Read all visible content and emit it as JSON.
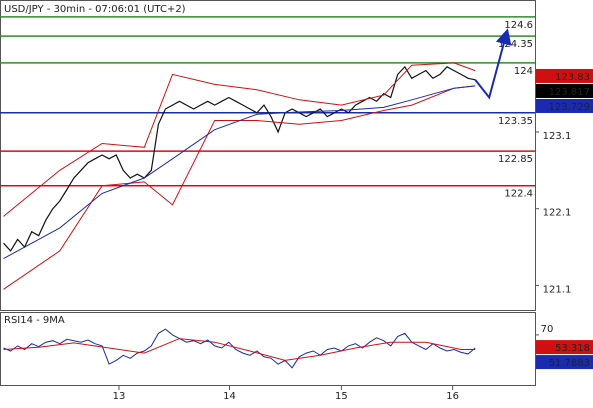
{
  "chart_data": {
    "type": "line",
    "title": "USD/JPY - 30min - 07:06:01 (UTC+2)",
    "xlim": [
      -0.5,
      75.5
    ],
    "xticks": [
      {
        "value": 16.4,
        "label": "13"
      },
      {
        "value": 32.1,
        "label": "14"
      },
      {
        "value": 48,
        "label": "15"
      },
      {
        "value": 63.8,
        "label": "16"
      }
    ],
    "ylim": [
      120.78,
      124.82
    ],
    "yticks": [
      121.1,
      122.1,
      123.1
    ],
    "levels": [
      {
        "value": 124.6,
        "color": "#2e8b2e"
      },
      {
        "value": 124.35,
        "color": "#2e8b2e"
      },
      {
        "value": 124,
        "color": "#2e8b2e"
      },
      {
        "value": 123.35,
        "color": "#1a2bb0"
      },
      {
        "value": 122.85,
        "color": "#d01010"
      },
      {
        "value": 122.4,
        "color": "#d01010"
      }
    ],
    "series": [
      {
        "color": "#111111",
        "x": [
          0,
          1,
          2,
          3,
          4,
          5,
          6,
          7,
          8,
          9,
          10,
          11,
          12,
          13,
          14,
          15,
          16,
          17,
          18,
          19,
          20,
          21,
          22,
          23,
          24,
          25,
          26,
          27,
          28,
          29,
          30,
          31,
          32,
          33,
          34,
          35,
          36,
          37,
          38,
          39,
          40,
          41,
          42,
          43,
          44,
          45,
          46,
          47,
          48,
          49,
          50,
          51,
          52,
          53,
          54,
          55,
          56,
          57,
          58,
          59,
          60,
          61,
          62,
          63,
          64,
          65,
          66,
          67
        ],
        "values": [
          121.65,
          121.55,
          121.7,
          121.6,
          121.8,
          121.75,
          121.95,
          122.1,
          122.2,
          122.35,
          122.5,
          122.6,
          122.7,
          122.75,
          122.8,
          122.75,
          122.8,
          122.6,
          122.5,
          122.55,
          122.5,
          122.6,
          123.2,
          123.4,
          123.45,
          123.5,
          123.45,
          123.4,
          123.45,
          123.5,
          123.45,
          123.5,
          123.55,
          123.5,
          123.45,
          123.4,
          123.35,
          123.45,
          123.3,
          123.1,
          123.35,
          123.4,
          123.35,
          123.3,
          123.35,
          123.4,
          123.3,
          123.35,
          123.4,
          123.35,
          123.45,
          123.5,
          123.55,
          123.5,
          123.6,
          123.55,
          123.85,
          123.95,
          123.8,
          123.85,
          123.9,
          123.8,
          123.85,
          123.95,
          123.9,
          123.85,
          123.8,
          123.78
        ]
      },
      {
        "color": "#d01010",
        "x": [
          0,
          8,
          14,
          20,
          24,
          30,
          36,
          42,
          48,
          54,
          58,
          64,
          67
        ],
        "values": [
          122.0,
          122.6,
          122.95,
          122.9,
          123.85,
          123.72,
          123.65,
          123.52,
          123.45,
          123.58,
          123.97,
          124.0,
          123.9
        ]
      },
      {
        "color": "#d01010",
        "x": [
          0,
          8,
          14,
          20,
          24,
          30,
          36,
          42,
          48,
          54,
          58,
          64,
          67
        ],
        "values": [
          121.05,
          121.55,
          122.4,
          122.45,
          122.15,
          123.25,
          123.25,
          123.2,
          123.25,
          123.38,
          123.45,
          123.67,
          123.7
        ]
      },
      {
        "color": "#1a2bb0",
        "x": [
          0,
          8,
          14,
          20,
          24,
          30,
          36,
          42,
          48,
          54,
          58,
          64,
          67
        ],
        "values": [
          121.45,
          121.85,
          122.3,
          122.5,
          122.75,
          123.13,
          123.33,
          123.36,
          123.38,
          123.42,
          123.52,
          123.67,
          123.7
        ]
      }
    ],
    "forecast": {
      "color": "#1a2bb0",
      "x": [
        67,
        69,
        71.5
      ],
      "values": [
        123.78,
        123.55,
        124.4
      ]
    },
    "markers": [
      {
        "value": 123.83,
        "color": "#d01010"
      },
      {
        "value": 123.817,
        "color": "#000000"
      },
      {
        "value": 123.729,
        "color": "#1a2bb0"
      }
    ],
    "rsi": {
      "title": "RSI14 - 9MA",
      "ylim": [
        0,
        100
      ],
      "yticks": [
        70
      ],
      "series": [
        {
          "color": "#1a2bb0",
          "x": [
            0,
            1,
            2,
            3,
            4,
            5,
            6,
            7,
            8,
            9,
            10,
            11,
            12,
            13,
            14,
            15,
            16,
            17,
            18,
            19,
            20,
            21,
            22,
            23,
            24,
            25,
            26,
            27,
            28,
            29,
            30,
            31,
            32,
            33,
            34,
            35,
            36,
            37,
            38,
            39,
            40,
            41,
            42,
            43,
            44,
            45,
            46,
            47,
            48,
            49,
            50,
            51,
            52,
            53,
            54,
            55,
            56,
            57,
            58,
            59,
            60,
            61,
            62,
            63,
            64,
            65,
            66,
            67
          ],
          "values": [
            52,
            48,
            55,
            50,
            58,
            54,
            60,
            62,
            58,
            64,
            62,
            60,
            63,
            58,
            55,
            30,
            35,
            42,
            38,
            45,
            48,
            55,
            72,
            78,
            70,
            65,
            60,
            62,
            58,
            63,
            55,
            52,
            60,
            50,
            45,
            42,
            48,
            40,
            38,
            30,
            35,
            25,
            40,
            45,
            48,
            42,
            50,
            52,
            48,
            55,
            58,
            52,
            60,
            66,
            62,
            55,
            68,
            72,
            60,
            55,
            50,
            58,
            52,
            48,
            50,
            46,
            44,
            52
          ]
        },
        {
          "color": "#d01010",
          "x": [
            0,
            5,
            10,
            15,
            20,
            25,
            30,
            35,
            40,
            45,
            50,
            55,
            60,
            65,
            67
          ],
          "values": [
            50,
            53,
            59,
            52,
            45,
            65,
            60,
            48,
            35,
            42,
            52,
            60,
            60,
            50,
            50
          ]
        }
      ],
      "markers": [
        {
          "value": 53.318,
          "color": "#d01010"
        },
        {
          "value": 51.7883,
          "color": "#1a2bb0"
        }
      ]
    }
  }
}
